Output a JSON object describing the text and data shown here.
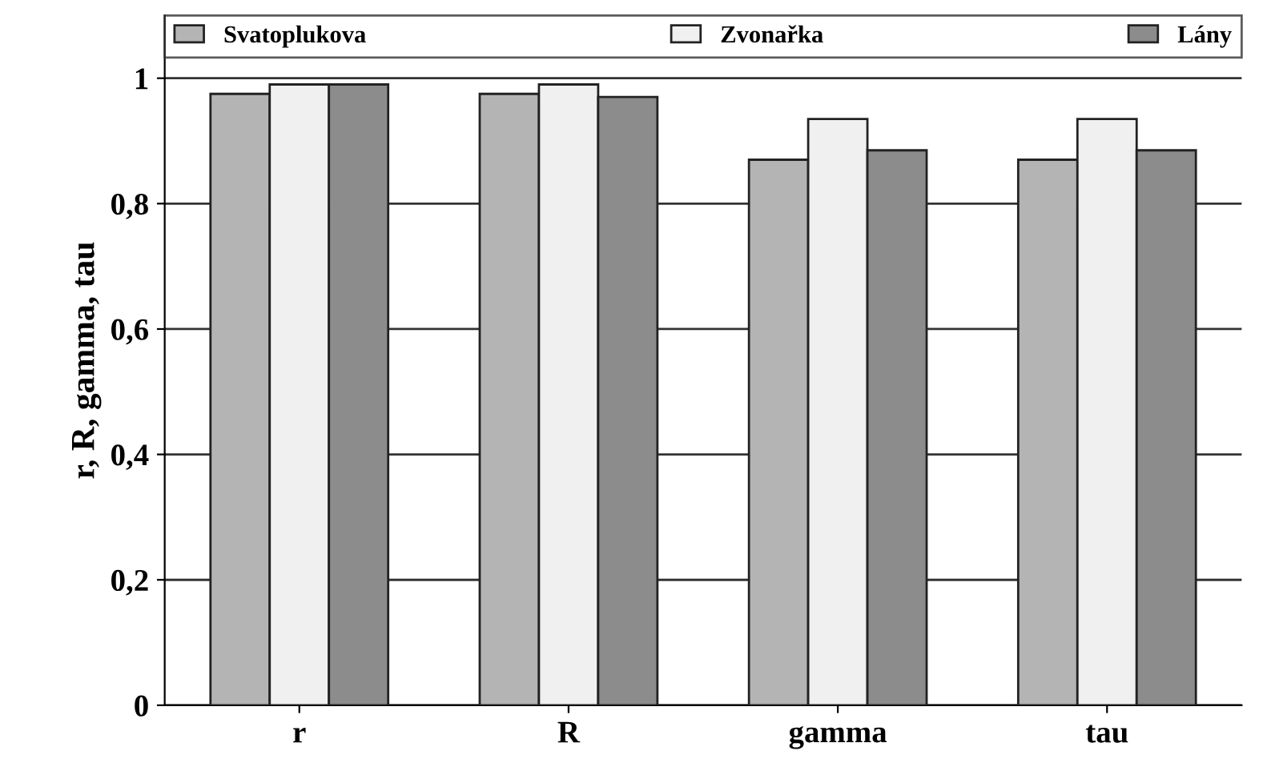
{
  "chart_data": {
    "type": "bar",
    "ylabel": "r, R, gamma, tau",
    "categories": [
      "r",
      "R",
      "gamma",
      "tau"
    ],
    "series": [
      {
        "name": "Svatoplukova",
        "color": "#b4b4b4",
        "values": [
          0.975,
          0.975,
          0.87,
          0.87
        ]
      },
      {
        "name": "Zvonařka",
        "color": "#f0f0f0",
        "values": [
          0.99,
          0.99,
          0.935,
          0.935
        ]
      },
      {
        "name": "Lány",
        "color": "#8c8c8c",
        "values": [
          0.99,
          0.97,
          0.885,
          0.885
        ]
      }
    ],
    "ylim": [
      0,
      1.1
    ],
    "yticks": [
      0,
      {
        "value": 0.2,
        "label": "0,2"
      },
      {
        "value": 0.4,
        "label": "0,4"
      },
      {
        "value": 0.6,
        "label": "0,6"
      },
      {
        "value": 0.8,
        "label": "0,8"
      },
      1
    ],
    "grid": "y",
    "legend": "top"
  }
}
